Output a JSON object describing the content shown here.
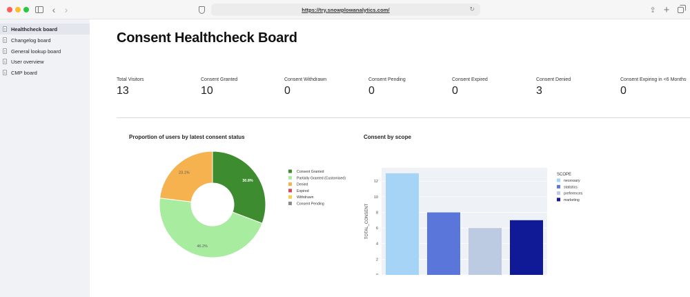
{
  "browser": {
    "url": "https://try.snowplowanalytics.com/"
  },
  "sidebar": {
    "items": [
      {
        "label": "Healthcheck board",
        "active": true
      },
      {
        "label": "Changelog board",
        "active": false
      },
      {
        "label": "General lookup board",
        "active": false
      },
      {
        "label": "User overview",
        "active": false
      },
      {
        "label": "CMP board",
        "active": false
      }
    ]
  },
  "main": {
    "title": "Consent Healthcheck Board",
    "metrics": [
      {
        "label": "Total Visitors",
        "value": "13"
      },
      {
        "label": "Consent Granted",
        "value": "10"
      },
      {
        "label": "Consent Withdrawn",
        "value": "0"
      },
      {
        "label": "Consent Pending",
        "value": "0"
      },
      {
        "label": "Consent Expired",
        "value": "0"
      },
      {
        "label": "Consent Denied",
        "value": "3"
      },
      {
        "label": "Consent Expiring in <6 Months",
        "value": "0"
      }
    ]
  },
  "chart_data": [
    {
      "type": "pie",
      "title": "Proportion of users by latest consent status",
      "hole": true,
      "slices": [
        {
          "label": "Consent Granted",
          "value": 30.8,
          "display": "30.8%",
          "color": "#3d8c2f"
        },
        {
          "label": "Partially Granted (Customised)",
          "value": 46.2,
          "display": "46.2%",
          "color": "#a8eca0"
        },
        {
          "label": "Denied",
          "value": 23.1,
          "display": "23.1%",
          "color": "#f5b24e"
        }
      ],
      "legend": [
        {
          "label": "Consent Granted",
          "color": "#3d8c2f"
        },
        {
          "label": "Partially Granted (Customised)",
          "color": "#a8eca0"
        },
        {
          "label": "Denied",
          "color": "#f5b24e"
        },
        {
          "label": "Expired",
          "color": "#d9455f"
        },
        {
          "label": "Withdrawn",
          "color": "#f2d14a"
        },
        {
          "label": "Consent Pending",
          "color": "#8a8a8a"
        }
      ],
      "legend_position": "right"
    },
    {
      "type": "bar",
      "title": "Consent by scope",
      "categories": [
        "necessary",
        "statistics",
        "preferences",
        "marketing"
      ],
      "values": [
        13,
        8,
        6,
        7
      ],
      "colors": [
        "#a6d4f7",
        "#5b76db",
        "#bccbe2",
        "#111a96"
      ],
      "xlabel": "SCOPE",
      "ylabel": "TOTAL_CONSENT",
      "yticks": [
        0,
        2,
        4,
        6,
        8,
        10,
        12
      ],
      "ylim": [
        0,
        13.7
      ],
      "legend_title": "SCOPE",
      "legend": [
        {
          "label": "necessary",
          "color": "#a6d4f7"
        },
        {
          "label": "statistics",
          "color": "#5b76db"
        },
        {
          "label": "preferences",
          "color": "#bccbe2"
        },
        {
          "label": "marketing",
          "color": "#111a96"
        }
      ],
      "legend_position": "right",
      "plot_background": "#eef1f6"
    }
  ]
}
